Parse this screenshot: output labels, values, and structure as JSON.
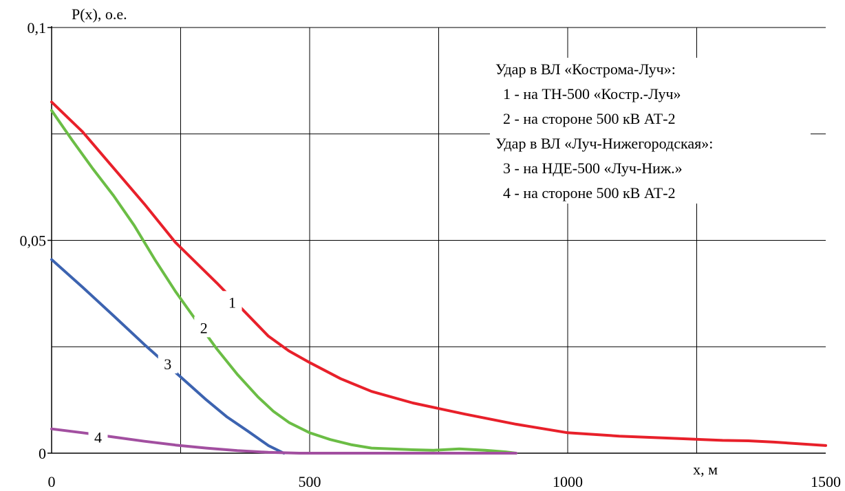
{
  "chart_data": {
    "type": "line",
    "ylabel": "P(x), о.е.",
    "xlabel": "x, м",
    "xlim": [
      0,
      1500
    ],
    "ylim": [
      0,
      0.1
    ],
    "x_ticks": [
      {
        "value": 0,
        "label": "0"
      },
      {
        "value": 500,
        "label": "500"
      },
      {
        "value": 1000,
        "label": "1000"
      },
      {
        "value": 1500,
        "label": "1500"
      }
    ],
    "y_ticks": [
      {
        "value": 0,
        "label": "0"
      },
      {
        "value": 0.05,
        "label": "0,05"
      },
      {
        "value": 0.1,
        "label": "0,1"
      }
    ],
    "grid": true,
    "grid_x_step": 250,
    "grid_y_step": 0.025,
    "legend": {
      "placement": "top-right",
      "lines": [
        "Удар в ВЛ «Кострома-Луч»:",
        "1 - на ТН-500 «Костр.-Луч»",
        "2 - на стороне 500 кВ АТ-2",
        "Удар в ВЛ «Луч-Нижегородская»:",
        "3 - на НДЕ-500 «Луч-Ниж.»",
        "4 - на стороне 500 кВ АТ-2"
      ]
    },
    "series": [
      {
        "name": "1",
        "color": "#e8202a",
        "label_at": [
          350,
          0.0355
        ],
        "points": [
          [
            0,
            0.0825
          ],
          [
            60,
            0.0755
          ],
          [
            120,
            0.067
          ],
          [
            180,
            0.0585
          ],
          [
            240,
            0.0495
          ],
          [
            320,
            0.04
          ],
          [
            400,
            0.03
          ],
          [
            420,
            0.0275
          ],
          [
            460,
            0.024
          ],
          [
            500,
            0.0213
          ],
          [
            560,
            0.0175
          ],
          [
            620,
            0.0145
          ],
          [
            700,
            0.0118
          ],
          [
            800,
            0.0092
          ],
          [
            900,
            0.0068
          ],
          [
            1000,
            0.0048
          ],
          [
            1100,
            0.004
          ],
          [
            1200,
            0.0035
          ],
          [
            1300,
            0.003
          ],
          [
            1350,
            0.0029
          ],
          [
            1400,
            0.0026
          ],
          [
            1500,
            0.0018
          ]
        ]
      },
      {
        "name": "2",
        "color": "#6bbd45",
        "label_at": [
          295,
          0.0295
        ],
        "points": [
          [
            0,
            0.0805
          ],
          [
            40,
            0.0735
          ],
          [
            80,
            0.0668
          ],
          [
            120,
            0.0605
          ],
          [
            160,
            0.0535
          ],
          [
            200,
            0.0455
          ],
          [
            240,
            0.038
          ],
          [
            280,
            0.0312
          ],
          [
            320,
            0.0245
          ],
          [
            360,
            0.0185
          ],
          [
            400,
            0.0132
          ],
          [
            430,
            0.0098
          ],
          [
            460,
            0.0072
          ],
          [
            500,
            0.0048
          ],
          [
            540,
            0.0032
          ],
          [
            580,
            0.002
          ],
          [
            620,
            0.0012
          ],
          [
            700,
            0.0008
          ],
          [
            740,
            0.0007
          ],
          [
            790,
            0.001
          ],
          [
            840,
            0.0007
          ],
          [
            880,
            0.0003
          ],
          [
            900,
            0
          ]
        ]
      },
      {
        "name": "3",
        "color": "#3c63b0",
        "label_at": [
          225,
          0.021
        ],
        "points": [
          [
            0,
            0.0455
          ],
          [
            60,
            0.039
          ],
          [
            120,
            0.0323
          ],
          [
            180,
            0.0255
          ],
          [
            240,
            0.019
          ],
          [
            300,
            0.0125
          ],
          [
            340,
            0.0085
          ],
          [
            380,
            0.0052
          ],
          [
            420,
            0.0018
          ],
          [
            450,
            0
          ]
        ]
      },
      {
        "name": "4",
        "color": "#a24fa0",
        "label_at": [
          90,
          0.0038
        ],
        "points": [
          [
            0,
            0.0057
          ],
          [
            60,
            0.0048
          ],
          [
            120,
            0.0038
          ],
          [
            180,
            0.0028
          ],
          [
            240,
            0.0019
          ],
          [
            300,
            0.0012
          ],
          [
            360,
            0.0006
          ],
          [
            420,
            0.0002
          ],
          [
            480,
            0
          ],
          [
            900,
            0
          ]
        ]
      }
    ]
  }
}
